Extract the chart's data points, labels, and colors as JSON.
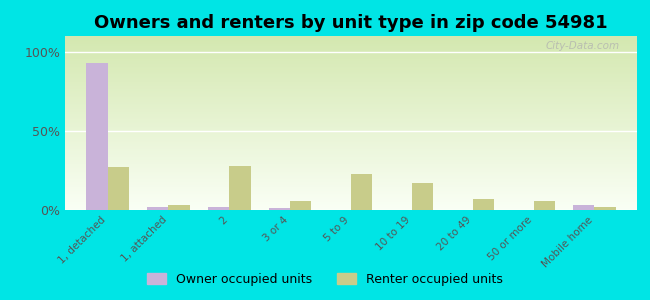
{
  "title": "Owners and renters by unit type in zip code 54981",
  "categories": [
    "1, detached",
    "1, attached",
    "2",
    "3 or 4",
    "5 to 9",
    "10 to 19",
    "20 to 49",
    "50 or more",
    "Mobile home"
  ],
  "owner_values": [
    93,
    2,
    2,
    1,
    0,
    0,
    0,
    0,
    3
  ],
  "renter_values": [
    27,
    3,
    28,
    6,
    23,
    17,
    7,
    6,
    2
  ],
  "owner_color": "#c9b3d9",
  "renter_color": "#c8cc8a",
  "background_color": "#00e5e5",
  "yticks": [
    0,
    50,
    100
  ],
  "ylim": [
    0,
    110
  ],
  "title_fontsize": 13,
  "legend_owner": "Owner occupied units",
  "legend_renter": "Renter occupied units",
  "watermark": "City-Data.com"
}
